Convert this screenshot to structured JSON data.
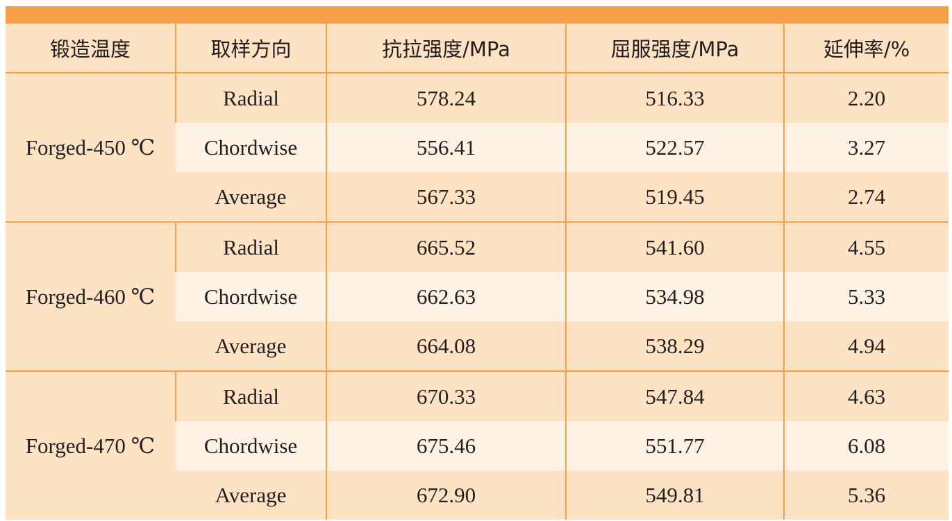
{
  "table": {
    "columns": [
      "锻造温度",
      "取样方向",
      "抗拉强度/MPa",
      "屈服强度/MPa",
      "延伸率/%"
    ],
    "groups": [
      {
        "label": "Forged-450 ℃",
        "rows": [
          {
            "direction": "Radial",
            "tensile": "578.24",
            "yield": "516.33",
            "elongation": "2.20"
          },
          {
            "direction": "Chordwise",
            "tensile": "556.41",
            "yield": "522.57",
            "elongation": "3.27"
          },
          {
            "direction": "Average",
            "tensile": "567.33",
            "yield": "519.45",
            "elongation": "2.74"
          }
        ]
      },
      {
        "label": "Forged-460 ℃",
        "rows": [
          {
            "direction": "Radial",
            "tensile": "665.52",
            "yield": "541.60",
            "elongation": "4.55"
          },
          {
            "direction": "Chordwise",
            "tensile": "662.63",
            "yield": "534.98",
            "elongation": "5.33"
          },
          {
            "direction": "Average",
            "tensile": "664.08",
            "yield": "538.29",
            "elongation": "4.94"
          }
        ]
      },
      {
        "label": "Forged-470 ℃",
        "rows": [
          {
            "direction": "Radial",
            "tensile": "670.33",
            "yield": "547.84",
            "elongation": "4.63"
          },
          {
            "direction": "Chordwise",
            "tensile": "675.46",
            "yield": "551.77",
            "elongation": "6.08"
          },
          {
            "direction": "Average",
            "tensile": "672.90",
            "yield": "549.81",
            "elongation": "5.36"
          }
        ]
      }
    ]
  },
  "colors": {
    "accent": "#f7a04a",
    "band_dark": "#fde2c4",
    "band_light": "#fef2e4"
  }
}
